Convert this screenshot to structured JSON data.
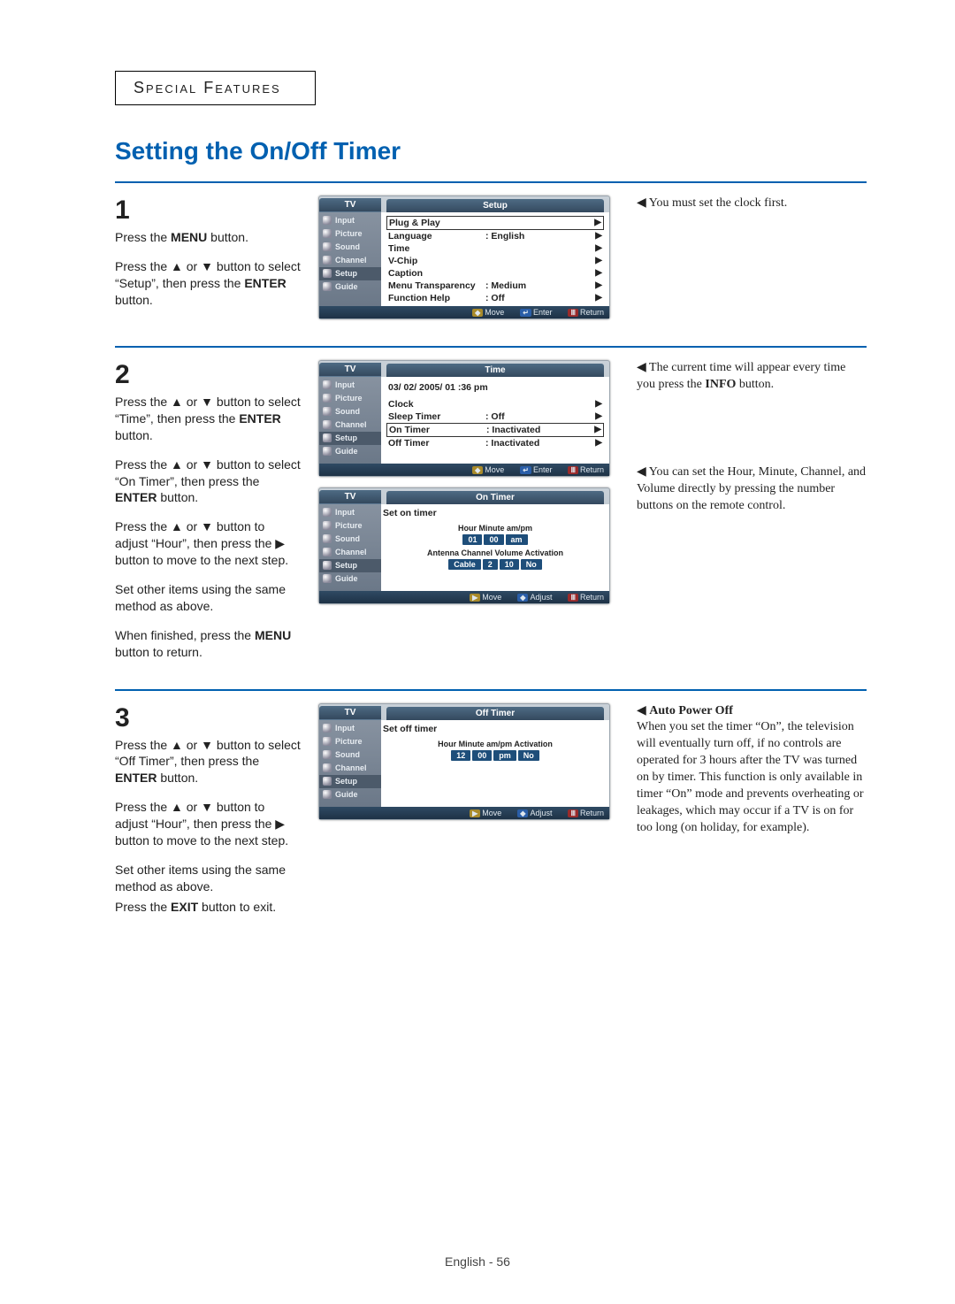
{
  "chapter": "Special Features",
  "section_title": "Setting the On/Off Timer",
  "step1": {
    "num": "1",
    "p1": "Press the <b>MENU</b> button.",
    "p2": "Press the ▲ or ▼ button to select “Setup”, then press the <b>ENTER</b> button.",
    "note": "◀  You must set the clock first."
  },
  "step2": {
    "num": "2",
    "p1": "Press the ▲ or ▼ button to select “Time”, then press the <b>ENTER</b> button.",
    "p2": "Press the ▲ or ▼ button to select “On Timer”, then press the <b>ENTER</b> button.",
    "p3": "Press the ▲ or ▼ button to adjust “Hour”, then press the ▶ button to move to the next step.",
    "p4": "Set other items using the same method as above.",
    "p5": "When finished, press the <b>MENU</b> button to return.",
    "note1": "◀  The current time will appear every time you press the <b>INFO</b> button.",
    "note2": "◀  You can set the Hour, Minute, Channel, and Volume directly by pressing the number buttons on the remote control."
  },
  "step3": {
    "num": "3",
    "p1": "Press the ▲ or ▼ button to select “Off Timer”, then press the <b>ENTER</b> button.",
    "p2": "Press the ▲ or ▼ button to adjust “Hour”, then press the ▶ button to move to the next step.",
    "p3": "Set other items using the same method as above.",
    "p4": "Press the <b>EXIT</b> button to exit.",
    "note_title": "◀  <b>Auto Power Off</b>",
    "note_body": "When you set the timer “On”, the television will eventually turn off, if no controls are operated for 3 hours after the TV was turned on by timer. This function is only available in timer “On” mode and prevents overheating or leakages, which may occur if a TV is on for too long (on holiday, for example)."
  },
  "osd_common": {
    "tv_label": "TV",
    "side_items": [
      "Input",
      "Picture",
      "Sound",
      "Channel",
      "Setup",
      "Guide"
    ]
  },
  "osd1": {
    "title": "Setup",
    "rows": [
      {
        "k": "Plug & Play",
        "v": "",
        "hl": true
      },
      {
        "k": "Language",
        "v": ":  English"
      },
      {
        "k": "Time",
        "v": ""
      },
      {
        "k": "V-Chip",
        "v": ""
      },
      {
        "k": "Caption",
        "v": ""
      },
      {
        "k": "Menu Transparency",
        "v": ":  Medium"
      },
      {
        "k": "Function Help",
        "v": ":  Off"
      }
    ],
    "foot": [
      "Move",
      "Enter",
      "Return"
    ]
  },
  "osd2": {
    "title": "Time",
    "header": "03/ 02/ 2005/ 01 :36  pm",
    "rows": [
      {
        "k": "Clock",
        "v": ""
      },
      {
        "k": "Sleep Timer",
        "v": ":  Off"
      },
      {
        "k": "On Timer",
        "v": ":  Inactivated",
        "hl": true
      },
      {
        "k": "Off Timer",
        "v": ":  Inactivated"
      }
    ],
    "foot": [
      "Move",
      "Enter",
      "Return"
    ]
  },
  "osd3": {
    "title": "On Timer",
    "header": "Set on timer",
    "lbl1": "Hour  Minute  am/pm",
    "row1": [
      "01",
      "00",
      "am"
    ],
    "lbl2": "Antenna Channel Volume Activation",
    "row2": [
      "Cable",
      "2",
      "10",
      "No"
    ],
    "foot": [
      "Move",
      "Adjust",
      "Return"
    ]
  },
  "osd4": {
    "title": "Off Timer",
    "header": "Set off timer",
    "lbl1": "Hour  Minute  am/pm  Activation",
    "row1": [
      "12",
      "00",
      "pm",
      "No"
    ],
    "foot": [
      "Move",
      "Adjust",
      "Return"
    ]
  },
  "page_footer": "English - 56"
}
